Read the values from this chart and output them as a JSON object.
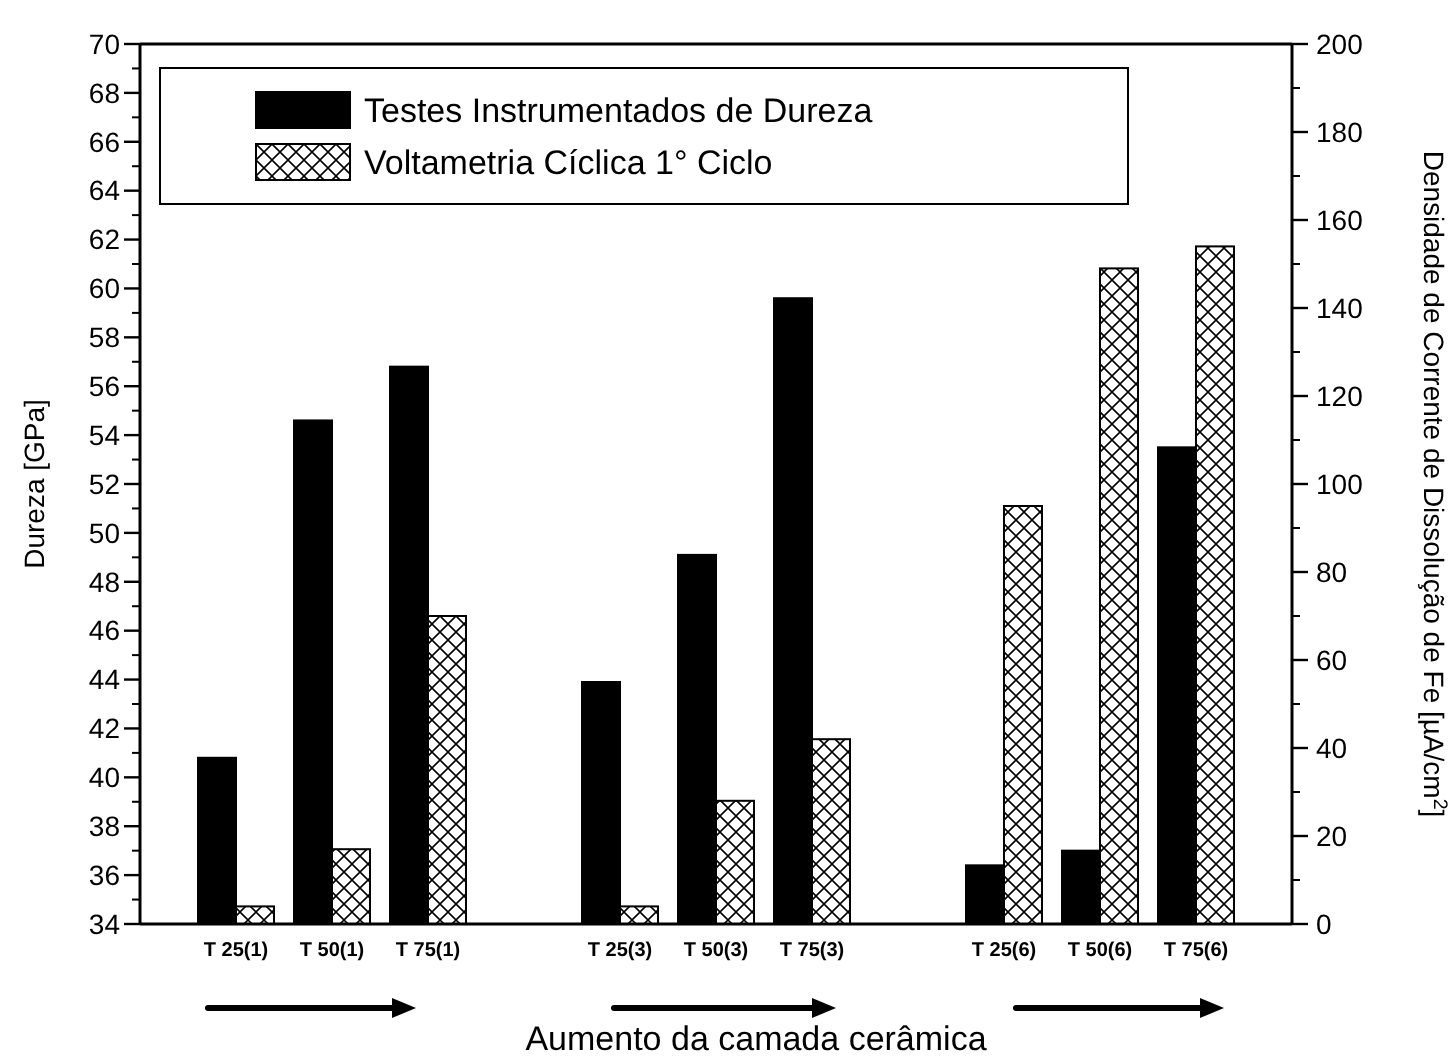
{
  "chart_data": {
    "type": "bar",
    "xlabel": "Aumento da camada cerâmica",
    "ylabel": "Dureza [GPa]",
    "y2label": "Densidade de Corrente de Dissolução de Fe [µA/cm$^{2}$]",
    "categories": [
      "T 25(1)",
      "T 50(1)",
      "T 75(1)",
      null,
      "T 25(3)",
      "T 50(3)",
      "T 75(3)",
      null,
      "T 25(6)",
      "T 50(6)",
      "T 75(6)"
    ],
    "series": [
      {
        "name": "Testes Instrumentados de Dureza",
        "color": "#000000",
        "values": [
          40.8,
          54.6,
          56.8,
          null,
          43.9,
          49.1,
          59.6,
          null,
          36.4,
          37.0,
          53.5
        ]
      },
      {
        "name": "Voltametria Cíclica 1° Ciclo",
        "color": "#000000",
        "axis": "y2",
        "values": [
          4,
          17,
          70,
          null,
          4,
          28,
          42,
          null,
          95,
          149,
          154
        ]
      }
    ],
    "ylim": [
      34,
      70
    ],
    "yticks": [
      34,
      36,
      38,
      40,
      42,
      44,
      46,
      48,
      50,
      52,
      54,
      56,
      58,
      60,
      62,
      64,
      66,
      68,
      70
    ],
    "y2lim": [
      0,
      200
    ],
    "y2ticks": [
      0,
      20,
      40,
      60,
      80,
      100,
      120,
      140,
      160,
      180,
      200
    ],
    "legend": "top",
    "grid": false
  }
}
